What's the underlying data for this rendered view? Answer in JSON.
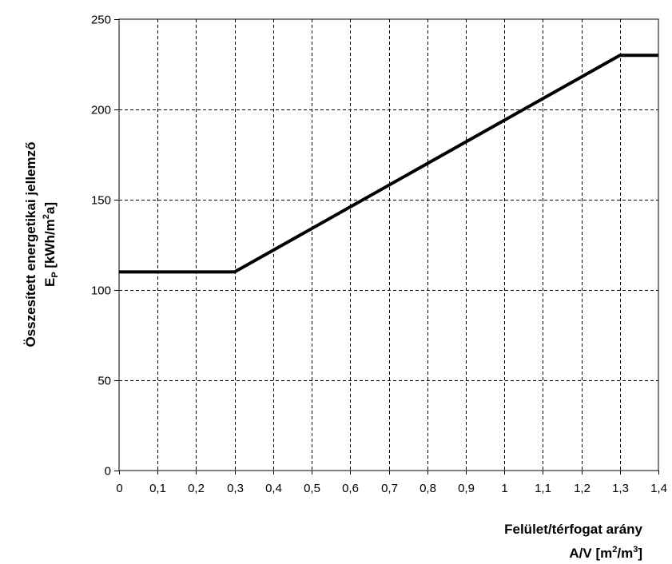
{
  "chart_data": {
    "type": "line",
    "title": "",
    "xlabel": {
      "line1": "Felület/térfogat arány",
      "line2_prefix": "A/V [m",
      "line2_sup1": "2",
      "line2_mid": "/m",
      "line2_sup2": "3",
      "line2_suffix": "]"
    },
    "ylabel": {
      "line1": "Összesített energetikai jellemző",
      "line2_prefix": "E",
      "line2_sub": "P",
      "line2_mid": " [kWh/m",
      "line2_sup": "2",
      "line2_suffix": "a]"
    },
    "xlim": [
      0,
      1.4
    ],
    "ylim": [
      0,
      250
    ],
    "x_ticks": [
      "0",
      "0,1",
      "0,2",
      "0,3",
      "0,4",
      "0,5",
      "0,6",
      "0,7",
      "0,8",
      "0,9",
      "1",
      "1,1",
      "1,2",
      "1,3",
      "1,4"
    ],
    "y_ticks": [
      "0",
      "50",
      "100",
      "150",
      "200",
      "250"
    ],
    "grid": true,
    "series": [
      {
        "x": [
          0,
          0.3,
          1.3,
          1.4
        ],
        "y": [
          110,
          110,
          230,
          230
        ]
      }
    ],
    "colors": {
      "line": "#000000",
      "grid": "#000000",
      "frame": "#000000"
    }
  }
}
